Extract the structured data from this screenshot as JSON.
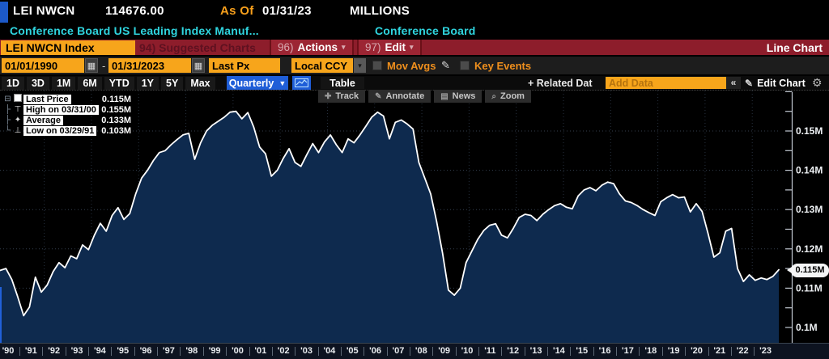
{
  "titlebar": {
    "ticker": "LEI NWCN",
    "last_value": "114676.00",
    "as_of_label": "As Of",
    "as_of_date": "01/31/23",
    "units": "MILLIONS"
  },
  "subtitle": {
    "description": "Conference Board US Leading Index Manuf...",
    "source": "Conference Board"
  },
  "menubar": {
    "security_tab": "LEI NWCN Index",
    "suggested_charts": {
      "key": "94)",
      "label": "Suggested Charts"
    },
    "actions": {
      "key": "96)",
      "label": "Actions",
      "caret": "▾"
    },
    "edit": {
      "key": "97)",
      "label": "Edit",
      "caret": "▾"
    },
    "chart_type": "Line Chart"
  },
  "toolbar": {
    "date_from": "01/01/1990",
    "range_separator": "-",
    "date_to": "01/31/2023",
    "price_field": "Last Px",
    "currency": "Local CCY",
    "mov_avgs_label": "Mov Avgs",
    "key_events_label": "Key Events",
    "calendar_glyph": "▦",
    "caret_glyph": "▾",
    "pencil_glyph": "✎"
  },
  "tabbar": {
    "periods": [
      "1D",
      "3D",
      "1M",
      "6M",
      "YTD",
      "1Y",
      "5Y",
      "Max"
    ],
    "frequency": "Quarterly",
    "frequency_caret": "▼",
    "table_label": "Table",
    "related_data_label": "+ Related Dat",
    "add_data_placeholder": "Add Data",
    "collapse_label": "«",
    "edit_chart_label": "Edit Chart",
    "edit_chart_glyph": "✎",
    "gear_glyph": "⚙"
  },
  "chart_tools": [
    {
      "name": "track",
      "glyph": "✚",
      "label": "Track"
    },
    {
      "name": "annotate",
      "glyph": "✎",
      "label": "Annotate"
    },
    {
      "name": "news",
      "glyph": "▤",
      "label": "News"
    },
    {
      "name": "zoom",
      "glyph": "⌕",
      "label": "Zoom"
    }
  ],
  "legend": {
    "rows": [
      {
        "tree": "⊟",
        "marker": "square",
        "label": "Last Price",
        "value": "0.115M"
      },
      {
        "tree": "├",
        "marker": "⊤",
        "label": "High on 03/31/00",
        "value": "0.155M"
      },
      {
        "tree": "├",
        "marker": "✦",
        "label": "Average",
        "value": "0.133M"
      },
      {
        "tree": "└",
        "marker": "⊥",
        "label": "Low on 03/29/91",
        "value": "0.103M"
      }
    ]
  },
  "chart_data": {
    "type": "area",
    "title": "LEI NWCN Index — Conference Board US Leading Index Manuf...",
    "units": "millions",
    "frequency": "quarterly",
    "x_start": "1990-Q1",
    "x_end": "2023-Q1",
    "x_tick_labels": [
      "'90",
      "'91",
      "'92",
      "'93",
      "'94",
      "'95",
      "'96",
      "'97",
      "'98",
      "'99",
      "'00",
      "'01",
      "'02",
      "'03",
      "'04",
      "'05",
      "'06",
      "'07",
      "'08",
      "'09",
      "'10",
      "'11",
      "'12",
      "'13",
      "'14",
      "'15",
      "'16",
      "'17",
      "'18",
      "'19",
      "'20",
      "'21",
      "'22",
      "'23"
    ],
    "grid": "dotted",
    "legend_position": "top-left",
    "ylim": [
      0.096,
      0.1605
    ],
    "y_ticks": [
      {
        "v": 0.1,
        "label": "0.1M"
      },
      {
        "v": 0.11,
        "label": "0.11M"
      },
      {
        "v": 0.12,
        "label": "0.12M"
      },
      {
        "v": 0.13,
        "label": "0.13M"
      },
      {
        "v": 0.14,
        "label": "0.14M"
      },
      {
        "v": 0.15,
        "label": "0.15M"
      }
    ],
    "last_price": {
      "value": 0.1147,
      "label": "0.115M"
    },
    "stats": {
      "last": 0.1147,
      "high": 0.155,
      "high_date": "03/31/00",
      "average": 0.133,
      "low": 0.103,
      "low_date": "03/29/91"
    },
    "line_color": "#ffffff",
    "fill_color": "#0e2a4e",
    "background": "#000000",
    "series": [
      {
        "name": "Last Price",
        "values": [
          0.1145,
          0.115,
          0.1122,
          0.1078,
          0.103,
          0.1052,
          0.1128,
          0.109,
          0.1108,
          0.1142,
          0.1165,
          0.1152,
          0.1182,
          0.1175,
          0.121,
          0.1198,
          0.1235,
          0.1265,
          0.1245,
          0.1285,
          0.1305,
          0.1275,
          0.129,
          0.134,
          0.138,
          0.14,
          0.1425,
          0.1445,
          0.145,
          0.1465,
          0.1478,
          0.149,
          0.1494,
          0.1428,
          0.147,
          0.15,
          0.1515,
          0.1525,
          0.1535,
          0.1548,
          0.155,
          0.1531,
          0.1547,
          0.151,
          0.1459,
          0.1442,
          0.1385,
          0.14,
          0.143,
          0.1455,
          0.142,
          0.141,
          0.144,
          0.1468,
          0.1445,
          0.1472,
          0.149,
          0.1465,
          0.1445,
          0.148,
          0.147,
          0.149,
          0.1512,
          0.1535,
          0.1548,
          0.1538,
          0.148,
          0.1522,
          0.1528,
          0.1518,
          0.1505,
          0.142,
          0.138,
          0.134,
          0.127,
          0.119,
          0.1095,
          0.1082,
          0.11,
          0.1165,
          0.1195,
          0.1225,
          0.1247,
          0.126,
          0.1264,
          0.1235,
          0.1228,
          0.1252,
          0.128,
          0.1288,
          0.1285,
          0.1272,
          0.1288,
          0.13,
          0.131,
          0.1315,
          0.1306,
          0.1302,
          0.1335,
          0.135,
          0.1356,
          0.1348,
          0.1362,
          0.137,
          0.1366,
          0.134,
          0.1322,
          0.1318,
          0.131,
          0.13,
          0.1292,
          0.1285,
          0.132,
          0.133,
          0.1338,
          0.133,
          0.1332,
          0.1294,
          0.1315,
          0.1295,
          0.124,
          0.1179,
          0.119,
          0.1245,
          0.1252,
          0.115,
          0.1117,
          0.1134,
          0.112,
          0.1126,
          0.1122,
          0.113,
          0.1147
        ]
      }
    ]
  },
  "colors": {
    "amber": "#f8a01c",
    "cyan": "#2fd4de",
    "maroon": "#8d1d2b",
    "blue_accent": "#1f5ed8"
  }
}
